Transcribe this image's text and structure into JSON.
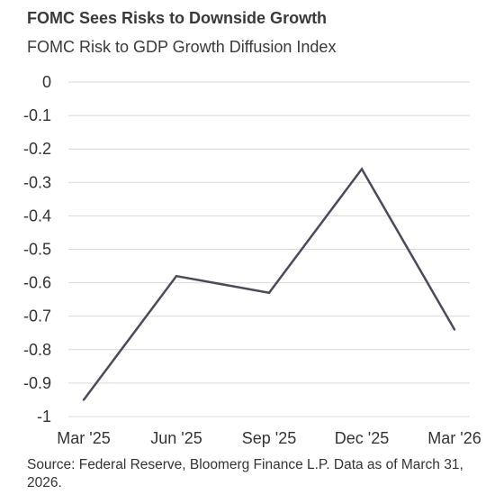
{
  "chart_data": {
    "type": "line",
    "title": "FOMC Sees Risks to Downside Growth",
    "subtitle": "FOMC Risk to GDP Growth Diffusion Index",
    "categories": [
      "Mar '25",
      "Jun '25",
      "Sep '25",
      "Dec '25",
      "Mar '26"
    ],
    "series": [
      {
        "values": [
          -0.95,
          -0.58,
          -0.63,
          -0.26,
          -0.74
        ]
      }
    ],
    "ylim": [
      -1,
      0
    ],
    "yticks": [
      0,
      -0.1,
      -0.2,
      -0.3,
      -0.4,
      -0.5,
      -0.6,
      -0.7,
      -0.8,
      -0.9,
      -1
    ],
    "ytick_labels": [
      "0",
      "-0.1",
      "-0.2",
      "-0.3",
      "-0.4",
      "-0.5",
      "-0.6",
      "-0.7",
      "-0.8",
      "-0.9",
      "-1"
    ],
    "grid": true,
    "line_color": "#4a4a5a",
    "grid_color": "#d9d9d9"
  },
  "source": "Source: Federal Reserve, Bloomerg Finance L.P. Data as of March 31, 2026."
}
